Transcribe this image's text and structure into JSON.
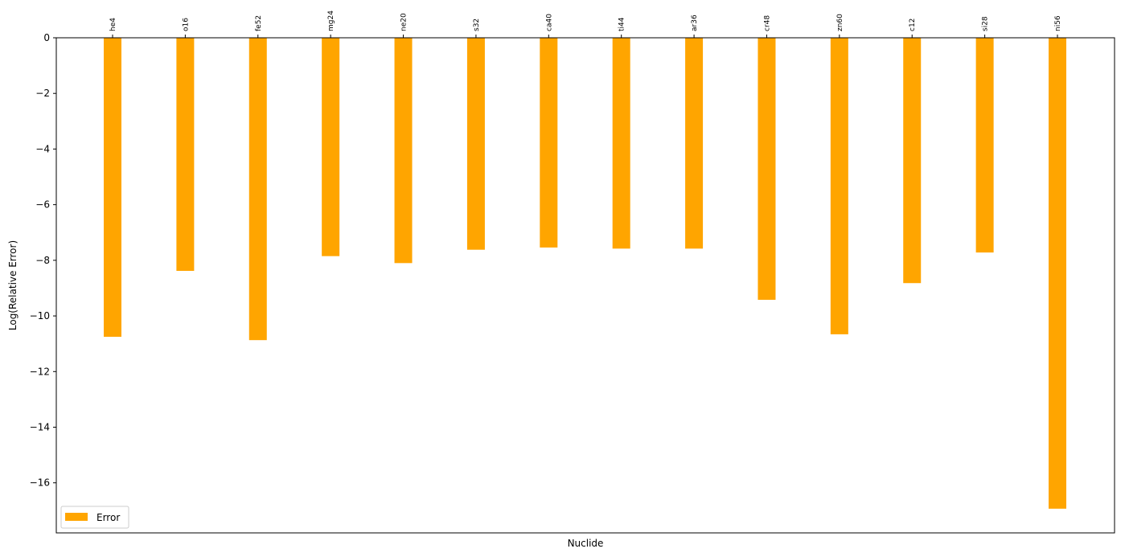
{
  "chart_data": {
    "type": "bar",
    "categories": [
      "he4",
      "o16",
      "fe52",
      "mg24",
      "ne20",
      "s32",
      "ca40",
      "ti44",
      "ar36",
      "cr48",
      "zn60",
      "c12",
      "si28",
      "ni56"
    ],
    "series": [
      {
        "name": "Error",
        "color": "#FFA500",
        "values": [
          -10.75,
          -8.38,
          -10.87,
          -7.85,
          -8.1,
          -7.62,
          -7.54,
          -7.58,
          -7.58,
          -9.42,
          -10.66,
          -8.82,
          -7.72,
          -16.93
        ]
      }
    ],
    "xlabel": "Nuclide",
    "ylabel": "Log(Relative Error)",
    "ylim": [
      -17.8,
      0
    ],
    "yticks": [
      0,
      -2,
      -4,
      -6,
      -8,
      -10,
      -12,
      -14,
      -16
    ],
    "ytick_labels": [
      "0",
      "−2",
      "−4",
      "−6",
      "−8",
      "−10",
      "−12",
      "−14",
      "−16"
    ],
    "category_labels_position": "top",
    "grid": false,
    "legend_position": "lower-left"
  }
}
